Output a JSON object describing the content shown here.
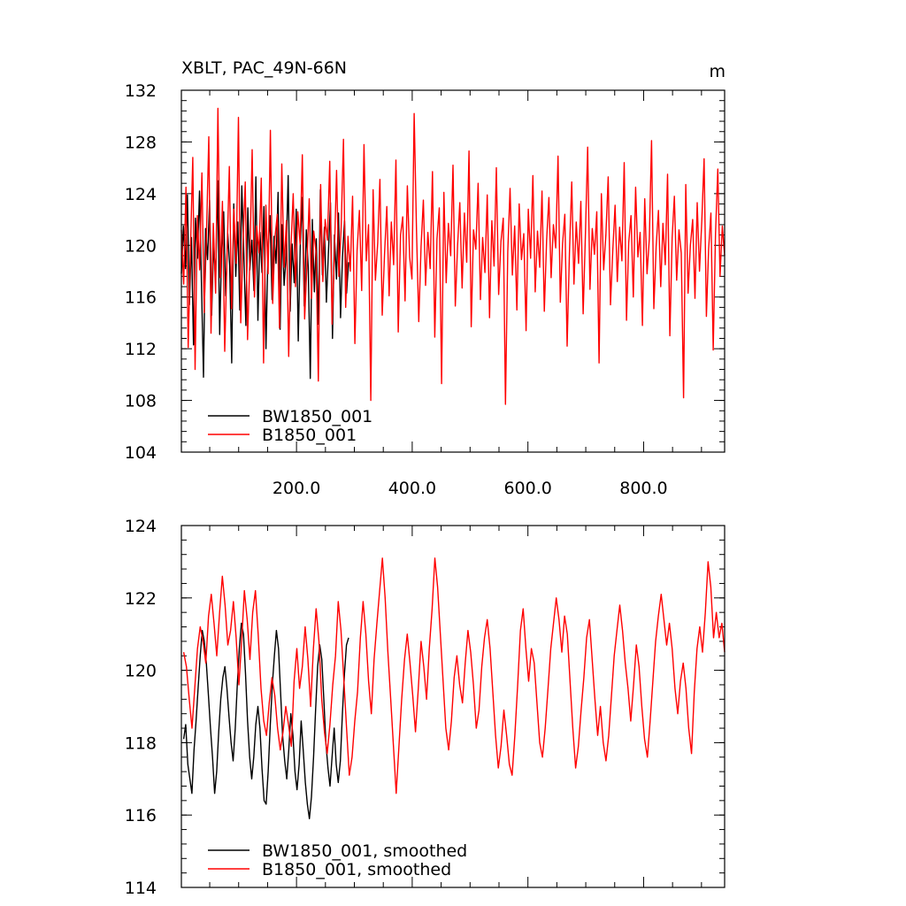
{
  "chart_data": [
    {
      "type": "line",
      "title": "XBLT, PAC_49N-66N",
      "units": "m",
      "xlim": [
        1,
        940
      ],
      "ylim": [
        104,
        132
      ],
      "xticks": [
        200,
        400,
        600,
        800
      ],
      "xtick_labels": [
        "200.0",
        "400.0",
        "600.0",
        "800.0"
      ],
      "yticks": [
        104,
        108,
        112,
        116,
        120,
        124,
        128,
        132
      ],
      "ytick_labels": [
        "104",
        "108",
        "112",
        "116",
        "120",
        "124",
        "128",
        "132"
      ],
      "grid": false,
      "legend_position": "bottom-left",
      "series": [
        {
          "name": "BW1850_001",
          "color": "#000000",
          "x_range": [
            1,
            290
          ],
          "mean": 119.5,
          "values": [
            117.8,
            121.5,
            118.2,
            123.9,
            115.4,
            120.6,
            112.3,
            122.1,
            119.0,
            124.2,
            116.7,
            109.8,
            121.3,
            118.9,
            123.5,
            114.6,
            120.2,
            117.3,
            125.0,
            113.1,
            119.8,
            122.6,
            116.1,
            120.9,
            118.4,
            110.9,
            123.2,
            117.6,
            121.8,
            115.0,
            124.6,
            119.3,
            113.8,
            122.9,
            118.1,
            120.4,
            116.5,
            125.3,
            114.2,
            121.0,
            117.9,
            123.0,
            112.0,
            119.6,
            122.3,
            115.8,
            120.7,
            118.6,
            124.1,
            113.5,
            121.6,
            116.9,
            119.2,
            125.4,
            114.9,
            120.1,
            117.1,
            122.8,
            112.6,
            119.9,
            123.7,
            115.3,
            121.2,
            118.3,
            109.7,
            122.0,
            116.4,
            120.5,
            113.9,
            124.3,
            117.7,
            121.4,
            115.6,
            119.4,
            123.3,
            112.8,
            120.8,
            117.4,
            122.5,
            114.4,
            119.1,
            121.9,
            116.3,
            118.7
          ]
        },
        {
          "name": "B1850_001",
          "color": "#ff0000",
          "x_range": [
            1,
            940
          ],
          "mean": 119.5,
          "values": [
            121.2,
            117.0,
            124.5,
            112.1,
            119.7,
            126.8,
            110.4,
            122.3,
            118.1,
            125.6,
            114.8,
            120.9,
            128.4,
            113.2,
            121.7,
            116.3,
            130.6,
            117.5,
            123.4,
            111.8,
            119.2,
            126.1,
            115.1,
            122.8,
            118.6,
            129.9,
            114.0,
            120.3,
            124.9,
            112.7,
            118.9,
            127.4,
            116.0,
            121.5,
            119.4,
            125.2,
            110.9,
            123.1,
            117.8,
            128.9,
            115.5,
            120.6,
            122.4,
            113.6,
            126.3,
            118.3,
            121.9,
            111.4,
            119.8,
            124.0,
            116.8,
            122.6,
            120.1,
            127.0,
            114.3,
            118.4,
            123.6,
            115.9,
            121.1,
            119.5,
            109.5,
            124.7,
            117.2,
            122.0,
            120.4,
            126.5,
            113.9,
            119.0,
            125.8,
            117.6,
            121.4,
            128.2,
            115.2,
            120.7,
            118.0,
            123.8,
            112.4,
            119.6,
            122.7,
            116.5,
            127.8,
            118.8,
            121.6,
            108.0,
            124.3,
            117.3,
            120.2,
            125.1,
            114.6,
            119.3,
            123.0,
            116.1,
            121.8,
            118.5,
            126.6,
            113.3,
            120.8,
            122.2,
            115.7,
            124.6,
            119.1,
            117.4,
            130.2,
            121.3,
            114.1,
            119.9,
            123.5,
            116.9,
            121.0,
            118.2,
            125.7,
            112.9,
            120.5,
            122.9,
            109.3,
            124.1,
            117.1,
            121.7,
            119.2,
            126.2,
            115.3,
            120.0,
            123.3,
            116.7,
            122.5,
            118.7,
            127.3,
            113.7,
            121.2,
            119.7,
            124.8,
            115.8,
            120.6,
            117.9,
            123.9,
            114.4,
            121.9,
            118.4,
            126.0,
            116.2,
            120.3,
            122.1,
            107.7,
            119.5,
            124.4,
            117.7,
            121.5,
            115.0,
            123.2,
            118.9,
            120.9,
            113.4,
            122.8,
            119.0,
            125.4,
            116.4,
            121.1,
            118.3,
            124.2,
            114.9,
            120.4,
            123.7,
            117.5,
            121.6,
            119.8,
            126.9,
            115.6,
            120.1,
            122.4,
            112.2,
            119.4,
            124.9,
            117.0,
            121.8,
            118.6,
            123.4,
            114.7,
            120.7,
            127.6,
            116.6,
            121.3,
            119.3,
            122.6,
            110.9,
            124.0,
            118.1,
            120.8,
            125.3,
            115.4,
            119.6,
            123.1,
            117.2,
            121.4,
            118.8,
            126.4,
            114.2,
            120.2,
            122.3,
            116.0,
            124.5,
            119.1,
            121.0,
            113.8,
            123.6,
            117.8,
            120.5,
            128.1,
            115.1,
            119.9,
            122.7,
            116.8,
            121.7,
            118.5,
            125.5,
            113.0,
            120.6,
            123.8,
            117.3,
            121.2,
            119.4,
            108.2,
            124.7,
            116.3,
            120.0,
            122.0,
            115.9,
            123.3,
            118.0,
            121.9,
            126.7,
            114.5,
            119.7,
            122.5,
            111.9,
            120.9,
            125.9,
            117.6,
            121.5,
            119.2
          ]
        }
      ]
    },
    {
      "type": "line",
      "title": "",
      "units": "",
      "xlim": [
        1,
        940
      ],
      "ylim": [
        114,
        124
      ],
      "xticks": [
        200,
        400,
        600,
        800
      ],
      "xtick_labels": [
        "",
        "",
        "",
        ""
      ],
      "yticks": [
        114,
        116,
        118,
        120,
        122,
        124
      ],
      "ytick_labels": [
        "114",
        "116",
        "118",
        "120",
        "122",
        "124"
      ],
      "grid": false,
      "legend_position": "bottom-left",
      "series": [
        {
          "name": "BW1850_001, smoothed",
          "color": "#000000",
          "x_range": [
            5,
            290
          ],
          "values": [
            118.1,
            118.5,
            117.4,
            117.0,
            116.6,
            117.8,
            118.6,
            119.5,
            120.4,
            121.1,
            120.8,
            120.2,
            119.3,
            118.4,
            117.6,
            116.6,
            117.2,
            118.3,
            119.2,
            119.8,
            120.1,
            119.5,
            118.7,
            118.0,
            117.5,
            118.4,
            119.6,
            120.6,
            121.3,
            121.0,
            119.9,
            118.6,
            117.6,
            117.0,
            117.6,
            118.5,
            119.0,
            118.4,
            117.3,
            116.4,
            116.3,
            117.2,
            118.5,
            119.6,
            120.4,
            121.1,
            120.6,
            119.4,
            118.2,
            117.5,
            117.0,
            117.8,
            118.8,
            118.2,
            117.2,
            116.7,
            117.4,
            118.6,
            117.8,
            116.9,
            116.3,
            115.9,
            116.5,
            117.6,
            118.9,
            120.1,
            120.7,
            120.3,
            119.2,
            118.0,
            117.3,
            116.8,
            117.6,
            118.4,
            117.4,
            116.9,
            117.5,
            118.8,
            119.9,
            120.7,
            120.9
          ]
        },
        {
          "name": "B1850_001, smoothed",
          "color": "#ff0000",
          "x_range": [
            5,
            940
          ],
          "values": [
            120.5,
            120.1,
            119.2,
            118.4,
            119.5,
            120.6,
            121.2,
            120.8,
            120.2,
            121.5,
            122.1,
            121.3,
            120.4,
            121.6,
            122.6,
            121.8,
            120.7,
            121.1,
            121.9,
            120.9,
            119.6,
            120.8,
            122.2,
            121.4,
            120.3,
            121.6,
            122.2,
            121.0,
            119.5,
            118.6,
            118.2,
            119.1,
            119.8,
            119.3,
            118.4,
            117.8,
            118.3,
            119.0,
            118.5,
            117.9,
            119.7,
            120.6,
            119.5,
            120.1,
            121.2,
            120.3,
            119.0,
            120.6,
            121.7,
            120.8,
            119.2,
            118.3,
            117.7,
            118.5,
            119.6,
            120.4,
            121.9,
            121.1,
            119.8,
            118.4,
            117.1,
            117.6,
            118.6,
            119.4,
            120.9,
            121.9,
            121.0,
            119.7,
            118.8,
            120.3,
            121.3,
            122.2,
            123.1,
            122.0,
            120.5,
            119.2,
            117.9,
            116.6,
            117.9,
            119.2,
            120.3,
            121.0,
            120.2,
            119.3,
            118.3,
            119.5,
            120.8,
            120.1,
            119.2,
            120.6,
            121.7,
            123.1,
            122.3,
            121.0,
            119.7,
            118.4,
            117.8,
            118.6,
            119.8,
            120.4,
            119.6,
            119.1,
            120.2,
            121.1,
            120.5,
            119.6,
            118.4,
            118.9,
            120.1,
            120.9,
            121.4,
            120.6,
            119.4,
            118.2,
            117.3,
            117.9,
            118.9,
            118.2,
            117.4,
            117.1,
            118.2,
            119.6,
            121.1,
            121.7,
            120.6,
            119.7,
            120.6,
            120.2,
            119.1,
            118.0,
            117.6,
            118.4,
            119.5,
            120.6,
            121.3,
            122.0,
            121.4,
            120.5,
            121.5,
            121.0,
            119.7,
            118.4,
            117.3,
            117.9,
            118.9,
            119.8,
            120.9,
            121.4,
            120.3,
            119.2,
            118.2,
            119.0,
            118.0,
            117.5,
            118.2,
            119.3,
            120.4,
            121.1,
            121.8,
            121.1,
            120.2,
            119.5,
            118.6,
            119.6,
            120.7,
            120.1,
            119.0,
            118.1,
            117.6,
            118.6,
            119.7,
            120.8,
            121.5,
            122.1,
            121.4,
            120.7,
            121.3,
            120.6,
            119.5,
            118.8,
            119.7,
            120.2,
            119.5,
            118.4,
            117.7,
            119.4,
            120.6,
            121.2,
            120.5,
            121.6,
            123.0,
            122.3,
            120.9,
            121.6,
            120.9,
            121.3,
            120.5
          ]
        }
      ]
    }
  ]
}
